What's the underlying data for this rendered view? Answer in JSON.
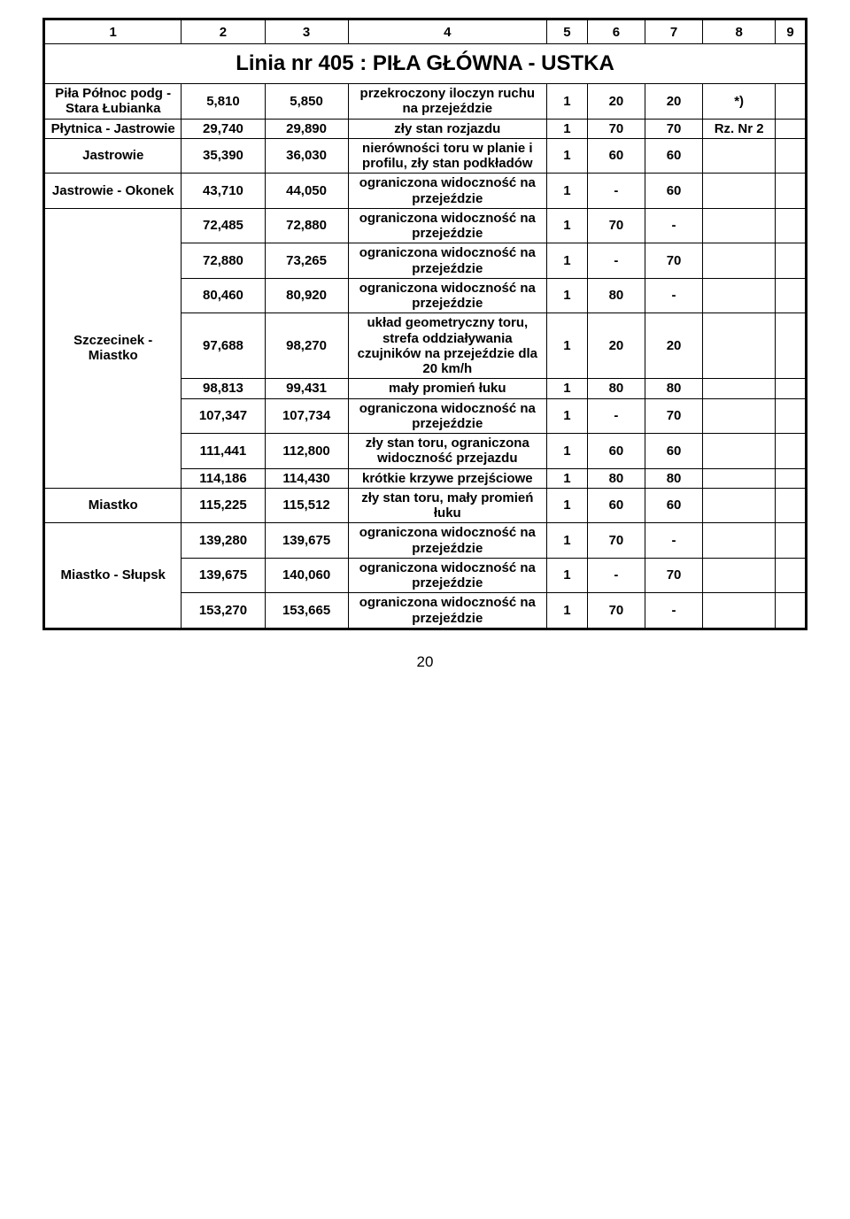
{
  "header_cols": [
    "1",
    "2",
    "3",
    "4",
    "5",
    "6",
    "7",
    "8",
    "9"
  ],
  "title": "Linia nr 405 :  PIŁA  GŁÓWNA  -  USTKA",
  "page_number": "20",
  "rows": [
    {
      "c1": "Piła Północ podg - Stara Łubianka",
      "c2": "5,810",
      "c3": "5,850",
      "c4": "przekroczony iloczyn ruchu na przejeździe",
      "c5": "1",
      "c6": "20",
      "c7": "20",
      "c8": "*)",
      "c9": ""
    },
    {
      "c1": "Płytnica - Jastrowie",
      "c2": "29,740",
      "c3": "29,890",
      "c4": "zły stan rozjazdu",
      "c5": "1",
      "c6": "70",
      "c7": "70",
      "c8": "Rz. Nr 2",
      "c9": ""
    },
    {
      "c1": "Jastrowie",
      "c2": "35,390",
      "c3": "36,030",
      "c4": "nierówności toru w planie i profilu, zły stan podkładów",
      "c5": "1",
      "c6": "60",
      "c7": "60",
      "c8": "",
      "c9": ""
    },
    {
      "c1": "Jastrowie - Okonek",
      "c2": "43,710",
      "c3": "44,050",
      "c4": "ograniczona widoczność na przejeździe",
      "c5": "1",
      "c6": "-",
      "c7": "60",
      "c8": "",
      "c9": ""
    },
    {
      "c2": "72,485",
      "c3": "72,880",
      "c4": "ograniczona widoczność na przejeździe",
      "c5": "1",
      "c6": "70",
      "c7": "-",
      "c8": "",
      "c9": ""
    },
    {
      "c2": "72,880",
      "c3": "73,265",
      "c4": "ograniczona widoczność na przejeździe",
      "c5": "1",
      "c6": "-",
      "c7": "70",
      "c8": "",
      "c9": ""
    },
    {
      "c2": "80,460",
      "c3": "80,920",
      "c4": "ograniczona widoczność na przejeździe",
      "c5": "1",
      "c6": "80",
      "c7": "-",
      "c8": "",
      "c9": ""
    },
    {
      "c2": "97,688",
      "c3": "98,270",
      "c4": "układ geometryczny toru, strefa oddziaływania czujników na przejeździe dla 20 km/h",
      "c5": "1",
      "c6": "20",
      "c7": "20",
      "c8": "",
      "c9": ""
    },
    {
      "c2": "98,813",
      "c3": "99,431",
      "c4": "mały promień łuku",
      "c5": "1",
      "c6": "80",
      "c7": "80",
      "c8": "",
      "c9": ""
    },
    {
      "c2": "107,347",
      "c3": "107,734",
      "c4": "ograniczona widoczność na przejeździe",
      "c5": "1",
      "c6": "-",
      "c7": "70",
      "c8": "",
      "c9": ""
    },
    {
      "c2": "111,441",
      "c3": "112,800",
      "c4": "zły stan toru, ograniczona widoczność przejazdu",
      "c5": "1",
      "c6": "60",
      "c7": "60",
      "c8": "",
      "c9": ""
    },
    {
      "c2": "114,186",
      "c3": "114,430",
      "c4": "krótkie krzywe przejściowe",
      "c5": "1",
      "c6": "80",
      "c7": "80",
      "c8": "",
      "c9": ""
    },
    {
      "c1": "Miastko",
      "c2": "115,225",
      "c3": "115,512",
      "c4": "zły stan toru, mały promień łuku",
      "c5": "1",
      "c6": "60",
      "c7": "60",
      "c8": "",
      "c9": ""
    },
    {
      "c2": "139,280",
      "c3": "139,675",
      "c4": "ograniczona widoczność na przejeździe",
      "c5": "1",
      "c6": "70",
      "c7": "-",
      "c8": "",
      "c9": ""
    },
    {
      "c1": "Miastko - Słupsk",
      "c2": "139,675",
      "c3": "140,060",
      "c4": "ograniczona widoczność na przejeździe",
      "c5": "1",
      "c6": "-",
      "c7": "70",
      "c8": "",
      "c9": ""
    },
    {
      "c2": "153,270",
      "c3": "153,665",
      "c4": "ograniczona widoczność na przejeździe",
      "c5": "1",
      "c6": "70",
      "c7": "-",
      "c8": "",
      "c9": ""
    }
  ],
  "group_label": "Szczecinek - Miastko"
}
